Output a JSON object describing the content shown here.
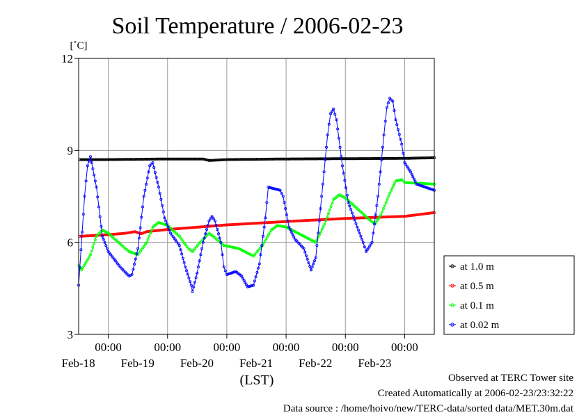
{
  "chart_data": {
    "type": "line",
    "title": "Soil Temperature / 2006-02-23",
    "ylabel": "[˚C]",
    "xlabel": "(LST)",
    "ylim": [
      3,
      12
    ],
    "yticks": [
      3,
      6,
      9,
      12
    ],
    "xlim": [
      -0.5,
      5.5
    ],
    "xticks": [
      {
        "x": 0,
        "time": "00:00",
        "date": "Feb-18"
      },
      {
        "x": 1,
        "time": "00:00",
        "date": "Feb-19"
      },
      {
        "x": 2,
        "time": "00:00",
        "date": "Feb-20"
      },
      {
        "x": 3,
        "time": "00:00",
        "date": "Feb-21"
      },
      {
        "x": 4,
        "time": "00:00",
        "date": "Feb-22"
      },
      {
        "x": 5,
        "time": "00:00",
        "date": "Feb-23"
      }
    ],
    "x_unit": "days from 2006-02-18 00:00 (LST)",
    "grid": true,
    "legend_position": "right",
    "series": [
      {
        "name": "at 1.0 m",
        "color": "#000000",
        "points": [
          [
            -0.94,
            8.7
          ],
          [
            0,
            8.7
          ],
          [
            1,
            8.72
          ],
          [
            1.6,
            8.72
          ],
          [
            1.7,
            8.67
          ],
          [
            2,
            8.7
          ],
          [
            3,
            8.72
          ],
          [
            4,
            8.73
          ],
          [
            5,
            8.74
          ],
          [
            5.5,
            8.76
          ]
        ]
      },
      {
        "name": "at 0.5 m",
        "color": "#ff0000",
        "points": [
          [
            -0.94,
            6.15
          ],
          [
            0,
            6.25
          ],
          [
            0.3,
            6.3
          ],
          [
            0.45,
            6.35
          ],
          [
            0.55,
            6.28
          ],
          [
            0.65,
            6.35
          ],
          [
            1,
            6.42
          ],
          [
            2,
            6.57
          ],
          [
            3,
            6.68
          ],
          [
            4,
            6.78
          ],
          [
            5,
            6.85
          ],
          [
            5.5,
            6.97
          ]
        ]
      },
      {
        "name": "at 0.1 m",
        "color": "#00ff00",
        "points": [
          [
            -0.94,
            5.95
          ],
          [
            -0.6,
            5.6
          ],
          [
            -0.45,
            5.1
          ],
          [
            -0.3,
            5.6
          ],
          [
            -0.2,
            6.2
          ],
          [
            -0.1,
            6.4
          ],
          [
            0,
            6.3
          ],
          [
            0.2,
            5.95
          ],
          [
            0.35,
            5.7
          ],
          [
            0.5,
            5.6
          ],
          [
            0.65,
            6.0
          ],
          [
            0.75,
            6.5
          ],
          [
            0.85,
            6.65
          ],
          [
            1,
            6.55
          ],
          [
            1.2,
            6.2
          ],
          [
            1.35,
            5.8
          ],
          [
            1.42,
            5.7
          ],
          [
            1.55,
            6.0
          ],
          [
            1.7,
            6.3
          ],
          [
            1.8,
            6.15
          ],
          [
            1.95,
            5.9
          ],
          [
            2.2,
            5.8
          ],
          [
            2.4,
            5.6
          ],
          [
            2.45,
            5.55
          ],
          [
            2.6,
            5.9
          ],
          [
            2.75,
            6.4
          ],
          [
            2.85,
            6.55
          ],
          [
            3,
            6.5
          ],
          [
            3.2,
            6.3
          ],
          [
            3.4,
            6.1
          ],
          [
            3.5,
            6.0
          ],
          [
            3.65,
            6.6
          ],
          [
            3.8,
            7.4
          ],
          [
            3.9,
            7.55
          ],
          [
            4,
            7.45
          ],
          [
            4.2,
            7.1
          ],
          [
            4.4,
            6.75
          ],
          [
            4.5,
            6.6
          ],
          [
            4.6,
            6.9
          ],
          [
            4.75,
            7.6
          ],
          [
            4.85,
            8.0
          ],
          [
            4.95,
            8.05
          ],
          [
            5,
            7.95
          ],
          [
            5.5,
            7.9
          ]
        ]
      },
      {
        "name": "at 0.02 m",
        "color": "#0000ff",
        "points": [
          [
            -0.94,
            5.1
          ],
          [
            -0.8,
            4.5
          ],
          [
            -0.65,
            3.6
          ],
          [
            -0.6,
            3.4
          ],
          [
            -0.5,
            4.6
          ],
          [
            -0.4,
            7.5
          ],
          [
            -0.35,
            8.5
          ],
          [
            -0.3,
            8.8
          ],
          [
            -0.2,
            7.8
          ],
          [
            -0.1,
            6.2
          ],
          [
            0,
            5.7
          ],
          [
            0.2,
            5.2
          ],
          [
            0.35,
            4.9
          ],
          [
            0.4,
            4.95
          ],
          [
            0.5,
            5.8
          ],
          [
            0.6,
            7.5
          ],
          [
            0.7,
            8.5
          ],
          [
            0.75,
            8.6
          ],
          [
            0.85,
            7.8
          ],
          [
            0.95,
            6.8
          ],
          [
            1.05,
            6.3
          ],
          [
            1.2,
            5.9
          ],
          [
            1.3,
            5.2
          ],
          [
            1.4,
            4.6
          ],
          [
            1.42,
            4.4
          ],
          [
            1.5,
            5.0
          ],
          [
            1.6,
            6.0
          ],
          [
            1.7,
            6.7
          ],
          [
            1.75,
            6.85
          ],
          [
            1.8,
            6.7
          ],
          [
            1.9,
            6.0
          ],
          [
            1.95,
            5.2
          ],
          [
            2.0,
            4.95
          ],
          [
            2.15,
            5.05
          ],
          [
            2.25,
            4.9
          ],
          [
            2.35,
            4.55
          ],
          [
            2.45,
            4.6
          ],
          [
            2.55,
            5.3
          ],
          [
            2.65,
            6.8
          ],
          [
            2.7,
            7.8
          ],
          [
            2.8,
            7.75
          ],
          [
            2.9,
            7.7
          ],
          [
            2.95,
            7.5
          ],
          [
            3.05,
            6.5
          ],
          [
            3.15,
            6.1
          ],
          [
            3.3,
            5.8
          ],
          [
            3.42,
            5.1
          ],
          [
            3.5,
            5.5
          ],
          [
            3.6,
            7.5
          ],
          [
            3.7,
            9.5
          ],
          [
            3.75,
            10.2
          ],
          [
            3.8,
            10.35
          ],
          [
            3.85,
            10.0
          ],
          [
            3.95,
            8.5
          ],
          [
            4.05,
            7.3
          ],
          [
            4.2,
            6.5
          ],
          [
            4.3,
            6.0
          ],
          [
            4.35,
            5.7
          ],
          [
            4.45,
            6.0
          ],
          [
            4.55,
            7.5
          ],
          [
            4.65,
            9.5
          ],
          [
            4.7,
            10.4
          ],
          [
            4.75,
            10.7
          ],
          [
            4.8,
            10.6
          ],
          [
            4.85,
            10.0
          ],
          [
            4.95,
            9.2
          ],
          [
            5.0,
            8.6
          ],
          [
            5.1,
            8.3
          ],
          [
            5.2,
            7.9
          ],
          [
            5.5,
            7.7
          ]
        ]
      }
    ]
  },
  "footer": {
    "observed": "Observed at TERC Tower site",
    "created": "Created Automatically at 2006-02-23/23:32:22",
    "source": "Data source : /home/hoivo/new/TERC-data/sorted  data/MET.30m.dat"
  }
}
